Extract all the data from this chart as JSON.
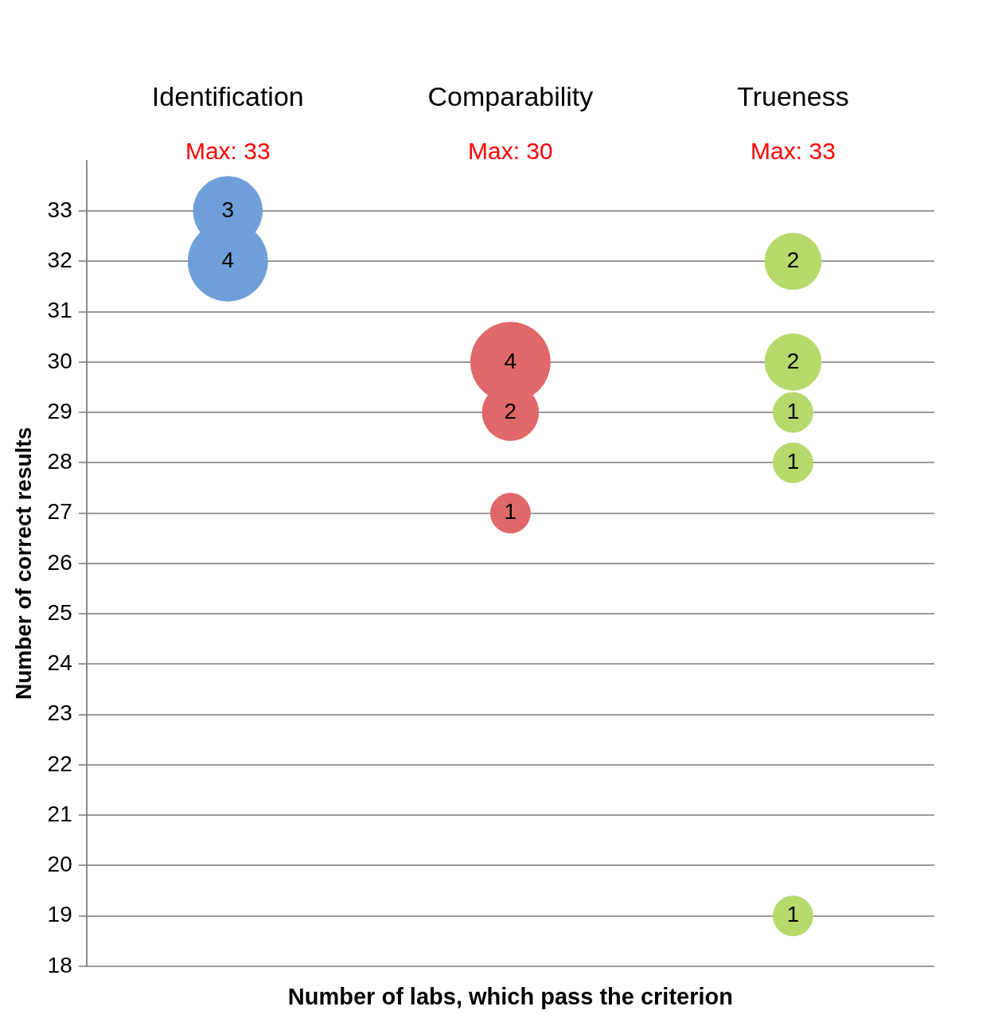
{
  "chart_data": {
    "type": "bubble",
    "ylabel": "Number of correct results",
    "xlabel": "Number of labs, which pass the criterion",
    "categories": [
      "Identification",
      "Comparability",
      "Trueness"
    ],
    "annotations": [
      "Max: 33",
      "Max: 30",
      "Max: 33"
    ],
    "series": [
      {
        "color": "#6f9fd8",
        "x": [
          "Identification",
          "Identification"
        ],
        "values": [
          33,
          32
        ],
        "sizes": [
          3,
          4
        ],
        "value_labels": [
          "3",
          "4"
        ]
      },
      {
        "color": "#e06868",
        "x": [
          "Comparability",
          "Comparability",
          "Comparability"
        ],
        "values": [
          30,
          29,
          27
        ],
        "sizes": [
          4,
          2,
          1
        ],
        "value_labels": [
          "4",
          "2",
          "1"
        ]
      },
      {
        "color": "#b5d96a",
        "x": [
          "Trueness",
          "Trueness",
          "Trueness",
          "Trueness",
          "Trueness"
        ],
        "values": [
          32,
          30,
          29,
          28,
          19
        ],
        "sizes": [
          2,
          2,
          1,
          1,
          1
        ],
        "value_labels": [
          "2",
          "2",
          "1",
          "1",
          "1"
        ]
      }
    ],
    "ylim": [
      18,
      34
    ],
    "yticks": [
      18,
      19,
      20,
      21,
      22,
      23,
      24,
      25,
      26,
      27,
      28,
      29,
      30,
      31,
      32,
      33
    ],
    "grid": "y",
    "legend": false
  }
}
